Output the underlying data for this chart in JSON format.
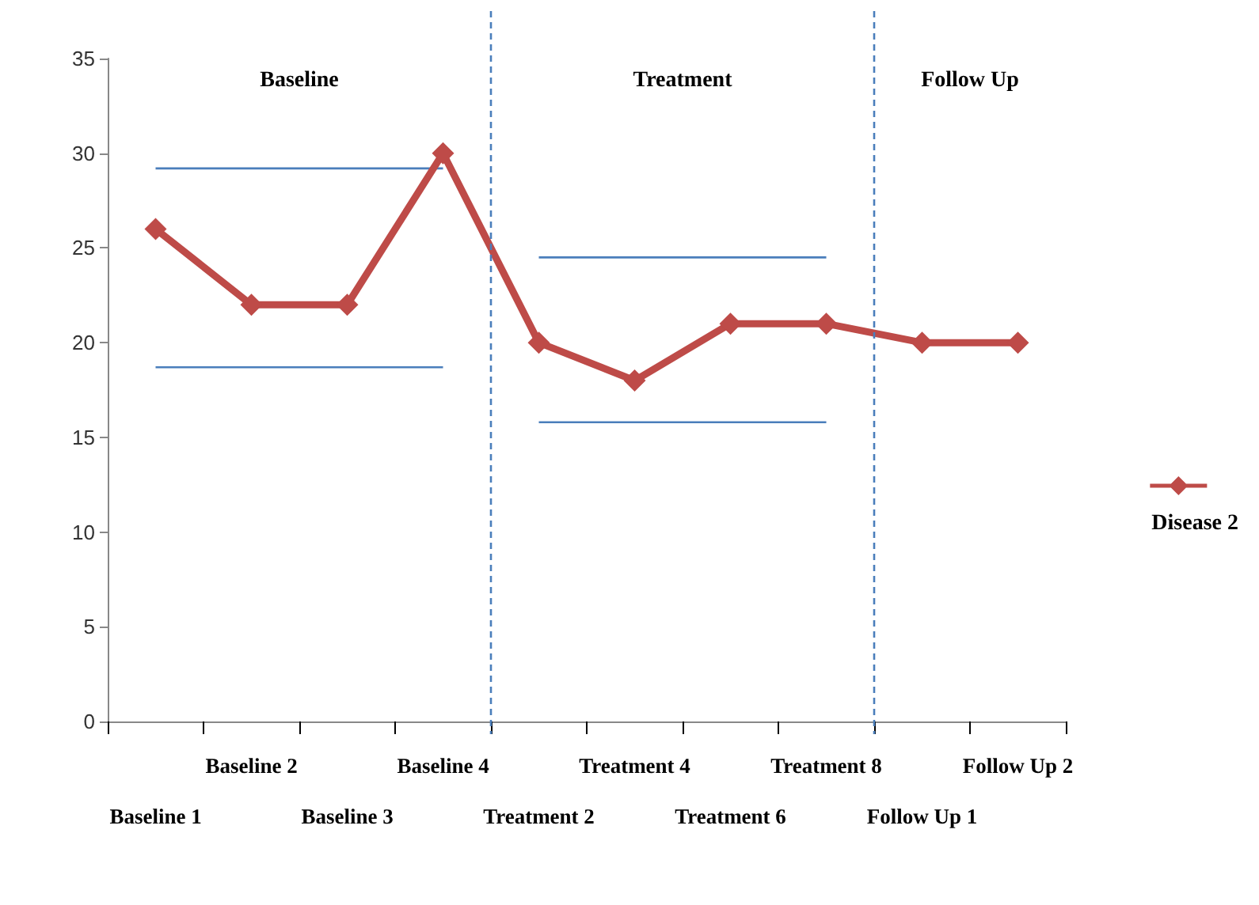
{
  "chart_data": {
    "type": "line",
    "categories": [
      "Baseline 1",
      "Baseline 2",
      "Baseline 3",
      "Baseline 4",
      "Treatment 2",
      "Treatment 4",
      "Treatment 6",
      "Treatment 8",
      "Follow Up 1",
      "Follow Up 2"
    ],
    "series": [
      {
        "name": "Disease 2",
        "color": "#be4b48",
        "values": [
          26,
          22,
          22,
          30,
          20,
          18,
          21,
          21,
          20,
          20
        ],
        "marker": "diamond"
      },
      {
        "color": "#4a7ebb",
        "values": [
          29.2,
          29.2,
          29.2,
          29.2,
          null,
          null,
          null,
          null,
          null,
          null
        ],
        "marker": "none"
      },
      {
        "color": "#4a7ebb",
        "values": [
          18.7,
          18.7,
          18.7,
          18.7,
          null,
          null,
          null,
          null,
          null,
          null
        ],
        "marker": "none"
      },
      {
        "color": "#4a7ebb",
        "values": [
          null,
          null,
          null,
          null,
          24.5,
          24.5,
          24.5,
          24.5,
          null,
          null
        ],
        "marker": "none"
      },
      {
        "color": "#4a7ebb",
        "values": [
          null,
          null,
          null,
          null,
          15.8,
          15.8,
          15.8,
          15.8,
          null,
          null
        ],
        "marker": "none"
      }
    ],
    "ref_lines": [
      {
        "axis": "x",
        "value": "Treatment 2",
        "color": "#4a7ebb",
        "line_style": "dashed"
      },
      {
        "axis": "x",
        "value": "Follow Up 1",
        "color": "#4a7ebb",
        "line_style": "dashed"
      }
    ],
    "annotations": [
      "Baseline",
      "Treatment",
      "Follow Up"
    ],
    "ylim": [
      0,
      35
    ],
    "yticks": [
      0,
      5,
      10,
      15,
      20,
      25,
      30,
      35
    ],
    "grid": false,
    "legend": "right"
  }
}
